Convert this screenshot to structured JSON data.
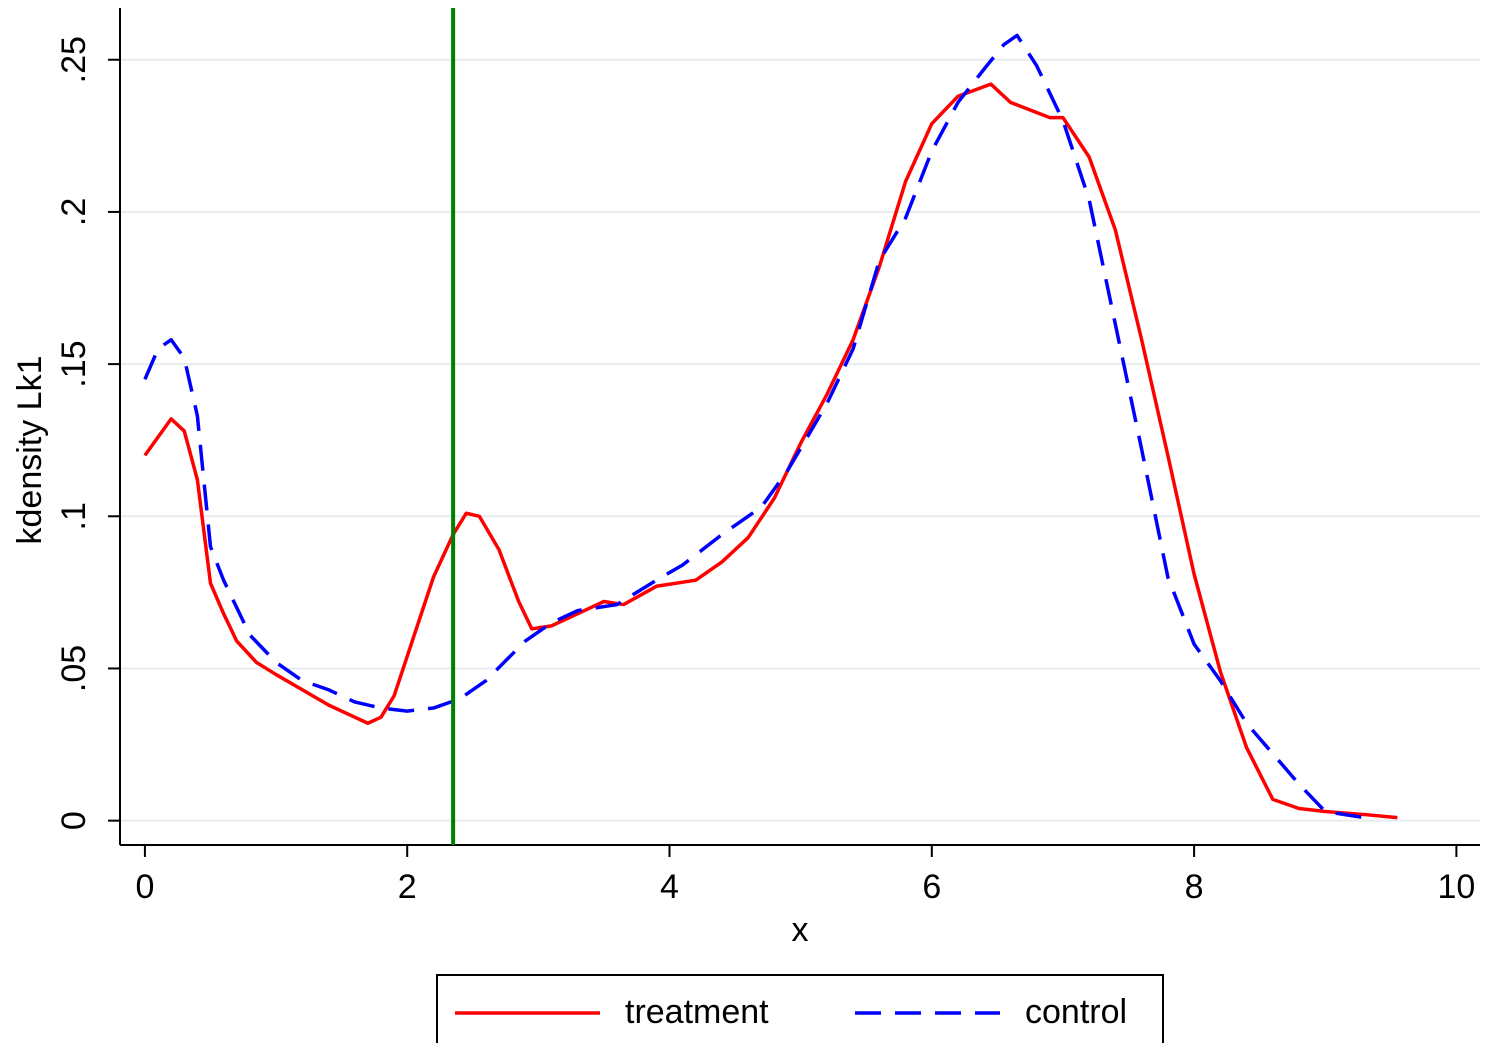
{
  "chart_data": {
    "type": "line",
    "xlabel": "x",
    "ylabel": "kdensity Lk1",
    "xlim": [
      -0.19,
      10.18
    ],
    "ylim": [
      -0.008,
      0.267
    ],
    "xticks": [
      0,
      2,
      4,
      6,
      8,
      10
    ],
    "yticks": [
      0,
      {
        "value": 0.05,
        "label": ".05"
      },
      {
        "value": 0.1,
        "label": ".1"
      },
      {
        "value": 0.15,
        "label": ".15"
      },
      {
        "value": 0.2,
        "label": ".2"
      },
      {
        "value": 0.25,
        "label": ".25"
      }
    ],
    "grid": true,
    "legend": "bottom",
    "reference_line": {
      "x": 2.35,
      "color": "#008000"
    },
    "series": [
      {
        "name": "treatment",
        "color": "#ff0000",
        "style": "solid",
        "x": [
          0,
          0.2,
          0.3,
          0.4,
          0.5,
          0.6,
          0.7,
          0.85,
          1.0,
          1.2,
          1.4,
          1.6,
          1.7,
          1.8,
          1.9,
          2.0,
          2.2,
          2.35,
          2.45,
          2.55,
          2.7,
          2.85,
          2.95,
          3.1,
          3.3,
          3.5,
          3.65,
          3.9,
          4.2,
          4.4,
          4.6,
          4.8,
          5.0,
          5.2,
          5.4,
          5.6,
          5.8,
          6.0,
          6.2,
          6.45,
          6.6,
          6.9,
          7.0,
          7.2,
          7.4,
          7.6,
          7.8,
          8.0,
          8.2,
          8.4,
          8.6,
          8.8,
          9.0,
          9.3,
          9.55
        ],
        "values": [
          0.12,
          0.132,
          0.128,
          0.112,
          0.078,
          0.068,
          0.059,
          0.052,
          0.048,
          0.043,
          0.038,
          0.034,
          0.032,
          0.034,
          0.041,
          0.054,
          0.08,
          0.094,
          0.101,
          0.1,
          0.089,
          0.072,
          0.063,
          0.064,
          0.068,
          0.072,
          0.071,
          0.077,
          0.079,
          0.085,
          0.093,
          0.106,
          0.124,
          0.14,
          0.158,
          0.182,
          0.21,
          0.229,
          0.238,
          0.242,
          0.236,
          0.231,
          0.231,
          0.218,
          0.194,
          0.158,
          0.12,
          0.081,
          0.049,
          0.024,
          0.007,
          0.004,
          0.003,
          0.002,
          0.001
        ]
      },
      {
        "name": "control",
        "color": "#0000ff",
        "style": "dashed",
        "x": [
          0,
          0.1,
          0.2,
          0.3,
          0.4,
          0.5,
          0.6,
          0.8,
          1.0,
          1.2,
          1.4,
          1.6,
          1.8,
          2.0,
          2.2,
          2.4,
          2.6,
          2.9,
          3.1,
          3.3,
          3.6,
          3.9,
          4.1,
          4.4,
          4.7,
          4.9,
          5.2,
          5.4,
          5.6,
          5.8,
          6.0,
          6.2,
          6.4,
          6.55,
          6.65,
          6.8,
          7.0,
          7.2,
          7.4,
          7.6,
          7.8,
          8.0,
          8.2,
          8.4,
          8.6,
          8.8,
          9.0,
          9.3
        ],
        "values": [
          0.145,
          0.155,
          0.158,
          0.152,
          0.133,
          0.09,
          0.079,
          0.061,
          0.052,
          0.046,
          0.043,
          0.039,
          0.037,
          0.036,
          0.037,
          0.04,
          0.046,
          0.059,
          0.065,
          0.069,
          0.071,
          0.079,
          0.084,
          0.094,
          0.103,
          0.115,
          0.137,
          0.155,
          0.184,
          0.198,
          0.22,
          0.236,
          0.247,
          0.255,
          0.258,
          0.248,
          0.23,
          0.204,
          0.163,
          0.122,
          0.08,
          0.058,
          0.046,
          0.032,
          0.022,
          0.012,
          0.003,
          0.001
        ]
      }
    ]
  }
}
